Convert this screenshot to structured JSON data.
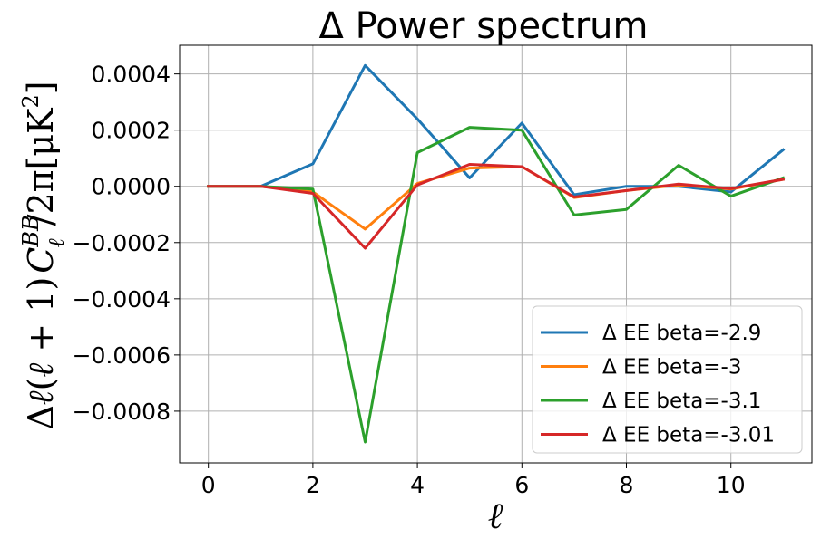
{
  "chart_data": {
    "type": "line",
    "title": "Δ Power spectrum",
    "xlabel": "ℓ",
    "ylabel": "Δℓ(ℓ + 1)C_ℓ^BB/2π[μK²]",
    "ylabel_parts": {
      "pre": "Δ",
      "ell1": "ℓ",
      "mid": "(",
      "ell2": "ℓ",
      "post": " + 1)",
      "c": "C",
      "sup": "BB",
      "sub": "ℓ",
      "end": "/2π[μK",
      "sq": "2",
      "close": "]"
    },
    "xlim": [
      -0.55,
      11.55
    ],
    "ylim": [
      -0.000984,
      0.000502
    ],
    "xticks": [
      0,
      2,
      4,
      6,
      8,
      10
    ],
    "xtick_labels": [
      "0",
      "2",
      "4",
      "6",
      "8",
      "10"
    ],
    "yticks": [
      0.0004,
      0.0002,
      0.0,
      -0.0002,
      -0.0004,
      -0.0006,
      -0.0008
    ],
    "ytick_labels": [
      "0.0004",
      "0.0002",
      "0.0000",
      "−0.0002",
      "−0.0004",
      "−0.0006",
      "−0.0008"
    ],
    "grid": true,
    "legend_position": "lower-right",
    "x": [
      0,
      1,
      2,
      3,
      4,
      5,
      6,
      7,
      8,
      9,
      10,
      11
    ],
    "series": [
      {
        "name": "Δ EE beta=-2.9",
        "color": "#1f77b4",
        "values": [
          0,
          0,
          8e-05,
          0.00043,
          0.00024,
          3e-05,
          0.000225,
          -3e-05,
          0.0,
          0.0,
          -2e-05,
          0.00013
        ]
      },
      {
        "name": "Δ EE beta=-3",
        "color": "#ff7f0e",
        "values": [
          0,
          0,
          -2e-05,
          -0.000152,
          1e-05,
          6.5e-05,
          7e-05,
          -4e-05,
          -1.5e-05,
          5e-06,
          -1e-05,
          2.5e-05
        ]
      },
      {
        "name": "Δ EE beta=-3.1",
        "color": "#2ca02c",
        "values": [
          0,
          0,
          -1e-05,
          -0.00091,
          0.00012,
          0.00021,
          0.0002,
          -0.000102,
          -8.2e-05,
          7.5e-05,
          -3.5e-05,
          3e-05
        ]
      },
      {
        "name": "Δ EE beta=-3.01",
        "color": "#d62728",
        "values": [
          0,
          0,
          -2.5e-05,
          -0.00022,
          5e-06,
          7.8e-05,
          7e-05,
          -3.8e-05,
          -1.5e-05,
          8e-06,
          -8e-06,
          2.5e-05
        ]
      }
    ]
  }
}
